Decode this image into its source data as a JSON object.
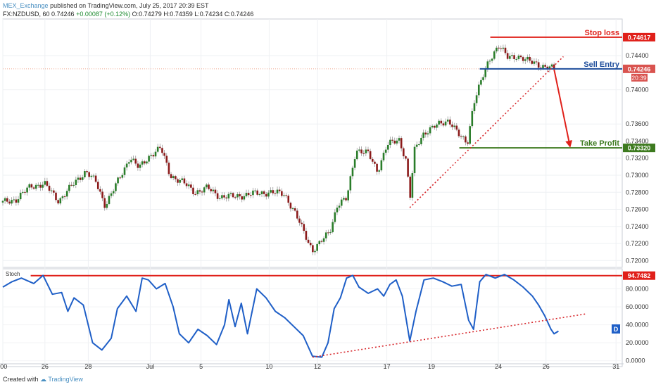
{
  "header": {
    "publisher": "MEX_Exchange",
    "published_text": "published on TradingView.com, July 25, 2017 20:39 EST",
    "symbol": "FX:NZDUSD, 60",
    "last": "0.74246",
    "change": "+0.00087 (+0.12%)",
    "ohlc": {
      "o": "O:0.74279",
      "h": "H:0.74359",
      "l": "L:0.74234",
      "c": "C:0.74246"
    }
  },
  "footer": {
    "created_with": "Created with",
    "brand": "TradingView"
  },
  "annotations": {
    "stop_loss": "Stop loss",
    "sell_entry": "Sell Entry",
    "take_profit": "Take Profit",
    "stop_loss_price": "0.74617",
    "sell_entry_price": "0.74246",
    "countdown": "20:39",
    "take_profit_price": "0.73320",
    "stoch_level": "94.7482",
    "stoch_label": "Stoch",
    "d_badge": "D"
  },
  "colors": {
    "up": "#2a7d2a",
    "down": "#8b1a1a",
    "stop": "#e0201a",
    "entry": "#1f4e9c",
    "target": "#3d7a1f",
    "stoch": "#1f5fc7",
    "trend": "#d7262b"
  },
  "chart_data": [
    {
      "type": "candlestick",
      "symbol": "FX:NZDUSD",
      "interval": "60",
      "x_ticks": [
        ":00",
        "26",
        "28",
        "Jul",
        "5",
        "10",
        "12",
        "17",
        "19",
        "24",
        "26",
        "31"
      ],
      "y_ticks": [
        "0.74400",
        "0.74000",
        "0.73600",
        "0.73400",
        "0.73200",
        "0.73000",
        "0.72800",
        "0.72600",
        "0.72400",
        "0.72200",
        "0.72000"
      ],
      "ylim": [
        0.7192,
        0.7483
      ],
      "close_path": [
        {
          "pos": 0.0,
          "v": 0.7268
        },
        {
          "pos": 0.022,
          "v": 0.7272
        },
        {
          "pos": 0.045,
          "v": 0.7287
        },
        {
          "pos": 0.067,
          "v": 0.729
        },
        {
          "pos": 0.09,
          "v": 0.727
        },
        {
          "pos": 0.112,
          "v": 0.7288
        },
        {
          "pos": 0.134,
          "v": 0.7305
        },
        {
          "pos": 0.15,
          "v": 0.7292
        },
        {
          "pos": 0.165,
          "v": 0.7265
        },
        {
          "pos": 0.18,
          "v": 0.7285
        },
        {
          "pos": 0.195,
          "v": 0.7305
        },
        {
          "pos": 0.205,
          "v": 0.7322
        },
        {
          "pos": 0.22,
          "v": 0.7308
        },
        {
          "pos": 0.24,
          "v": 0.7325
        },
        {
          "pos": 0.255,
          "v": 0.7332
        },
        {
          "pos": 0.27,
          "v": 0.73
        },
        {
          "pos": 0.29,
          "v": 0.7292
        },
        {
          "pos": 0.31,
          "v": 0.728
        },
        {
          "pos": 0.33,
          "v": 0.7285
        },
        {
          "pos": 0.35,
          "v": 0.7275
        },
        {
          "pos": 0.375,
          "v": 0.7275
        },
        {
          "pos": 0.4,
          "v": 0.7278
        },
        {
          "pos": 0.43,
          "v": 0.728
        },
        {
          "pos": 0.455,
          "v": 0.7278
        },
        {
          "pos": 0.47,
          "v": 0.7258
        },
        {
          "pos": 0.485,
          "v": 0.7235
        },
        {
          "pos": 0.5,
          "v": 0.7212
        },
        {
          "pos": 0.512,
          "v": 0.722
        },
        {
          "pos": 0.528,
          "v": 0.7235
        },
        {
          "pos": 0.54,
          "v": 0.7265
        },
        {
          "pos": 0.555,
          "v": 0.7272
        },
        {
          "pos": 0.57,
          "v": 0.733
        },
        {
          "pos": 0.59,
          "v": 0.7325
        },
        {
          "pos": 0.605,
          "v": 0.7305
        },
        {
          "pos": 0.62,
          "v": 0.7335
        },
        {
          "pos": 0.64,
          "v": 0.7342
        },
        {
          "pos": 0.652,
          "v": 0.7315
        },
        {
          "pos": 0.657,
          "v": 0.727
        },
        {
          "pos": 0.665,
          "v": 0.733
        },
        {
          "pos": 0.68,
          "v": 0.735
        },
        {
          "pos": 0.7,
          "v": 0.7358
        },
        {
          "pos": 0.72,
          "v": 0.7365
        },
        {
          "pos": 0.738,
          "v": 0.7345
        },
        {
          "pos": 0.75,
          "v": 0.7338
        },
        {
          "pos": 0.76,
          "v": 0.7385
        },
        {
          "pos": 0.77,
          "v": 0.7405
        },
        {
          "pos": 0.785,
          "v": 0.7435
        },
        {
          "pos": 0.8,
          "v": 0.7452
        },
        {
          "pos": 0.815,
          "v": 0.7438
        },
        {
          "pos": 0.83,
          "v": 0.744
        },
        {
          "pos": 0.845,
          "v": 0.7434
        },
        {
          "pos": 0.86,
          "v": 0.7432
        },
        {
          "pos": 0.875,
          "v": 0.7426
        },
        {
          "pos": 0.89,
          "v": 0.7425
        }
      ],
      "levels": {
        "stop_loss": 0.74617,
        "sell_entry": 0.74246,
        "take_profit": 0.7332
      },
      "trendline": [
        {
          "pos": 0.657,
          "v": 0.7262
        },
        {
          "pos": 0.905,
          "v": 0.7439
        }
      ],
      "projection_arrow": [
        {
          "pos": 0.89,
          "v": 0.7424
        },
        {
          "pos": 0.915,
          "v": 0.7333
        }
      ]
    },
    {
      "type": "line",
      "name": "Stoch",
      "y_ticks": [
        "80.0000",
        "60.0000",
        "40.0000",
        "20.0000",
        "0.0000"
      ],
      "ylim": [
        -1,
        100
      ],
      "level": 94.7482,
      "path": [
        {
          "pos": 0.0,
          "v": 82
        },
        {
          "pos": 0.015,
          "v": 88
        },
        {
          "pos": 0.03,
          "v": 92
        },
        {
          "pos": 0.05,
          "v": 86
        },
        {
          "pos": 0.065,
          "v": 95
        },
        {
          "pos": 0.08,
          "v": 74
        },
        {
          "pos": 0.095,
          "v": 76
        },
        {
          "pos": 0.105,
          "v": 55
        },
        {
          "pos": 0.115,
          "v": 70
        },
        {
          "pos": 0.13,
          "v": 62
        },
        {
          "pos": 0.145,
          "v": 20
        },
        {
          "pos": 0.16,
          "v": 12
        },
        {
          "pos": 0.175,
          "v": 25
        },
        {
          "pos": 0.185,
          "v": 58
        },
        {
          "pos": 0.2,
          "v": 72
        },
        {
          "pos": 0.215,
          "v": 55
        },
        {
          "pos": 0.225,
          "v": 92
        },
        {
          "pos": 0.235,
          "v": 90
        },
        {
          "pos": 0.248,
          "v": 80
        },
        {
          "pos": 0.262,
          "v": 86
        },
        {
          "pos": 0.275,
          "v": 60
        },
        {
          "pos": 0.285,
          "v": 30
        },
        {
          "pos": 0.3,
          "v": 20
        },
        {
          "pos": 0.315,
          "v": 35
        },
        {
          "pos": 0.33,
          "v": 28
        },
        {
          "pos": 0.345,
          "v": 18
        },
        {
          "pos": 0.358,
          "v": 40
        },
        {
          "pos": 0.365,
          "v": 68
        },
        {
          "pos": 0.375,
          "v": 38
        },
        {
          "pos": 0.385,
          "v": 64
        },
        {
          "pos": 0.395,
          "v": 30
        },
        {
          "pos": 0.41,
          "v": 80
        },
        {
          "pos": 0.425,
          "v": 70
        },
        {
          "pos": 0.44,
          "v": 55
        },
        {
          "pos": 0.455,
          "v": 48
        },
        {
          "pos": 0.47,
          "v": 38
        },
        {
          "pos": 0.485,
          "v": 28
        },
        {
          "pos": 0.5,
          "v": 5
        },
        {
          "pos": 0.515,
          "v": 4
        },
        {
          "pos": 0.525,
          "v": 20
        },
        {
          "pos": 0.535,
          "v": 58
        },
        {
          "pos": 0.545,
          "v": 70
        },
        {
          "pos": 0.555,
          "v": 92
        },
        {
          "pos": 0.565,
          "v": 95
        },
        {
          "pos": 0.575,
          "v": 82
        },
        {
          "pos": 0.59,
          "v": 75
        },
        {
          "pos": 0.605,
          "v": 80
        },
        {
          "pos": 0.615,
          "v": 72
        },
        {
          "pos": 0.625,
          "v": 85
        },
        {
          "pos": 0.635,
          "v": 90
        },
        {
          "pos": 0.645,
          "v": 72
        },
        {
          "pos": 0.657,
          "v": 22
        },
        {
          "pos": 0.667,
          "v": 55
        },
        {
          "pos": 0.68,
          "v": 90
        },
        {
          "pos": 0.695,
          "v": 92
        },
        {
          "pos": 0.71,
          "v": 88
        },
        {
          "pos": 0.725,
          "v": 83
        },
        {
          "pos": 0.74,
          "v": 85
        },
        {
          "pos": 0.752,
          "v": 45
        },
        {
          "pos": 0.76,
          "v": 35
        },
        {
          "pos": 0.77,
          "v": 88
        },
        {
          "pos": 0.78,
          "v": 96
        },
        {
          "pos": 0.795,
          "v": 92
        },
        {
          "pos": 0.81,
          "v": 96
        },
        {
          "pos": 0.825,
          "v": 90
        },
        {
          "pos": 0.84,
          "v": 82
        },
        {
          "pos": 0.855,
          "v": 72
        },
        {
          "pos": 0.865,
          "v": 62
        },
        {
          "pos": 0.875,
          "v": 50
        },
        {
          "pos": 0.885,
          "v": 35
        },
        {
          "pos": 0.89,
          "v": 30
        },
        {
          "pos": 0.897,
          "v": 33
        }
      ],
      "trendline": [
        {
          "pos": 0.5,
          "v": 4
        },
        {
          "pos": 0.94,
          "v": 52
        }
      ]
    }
  ]
}
